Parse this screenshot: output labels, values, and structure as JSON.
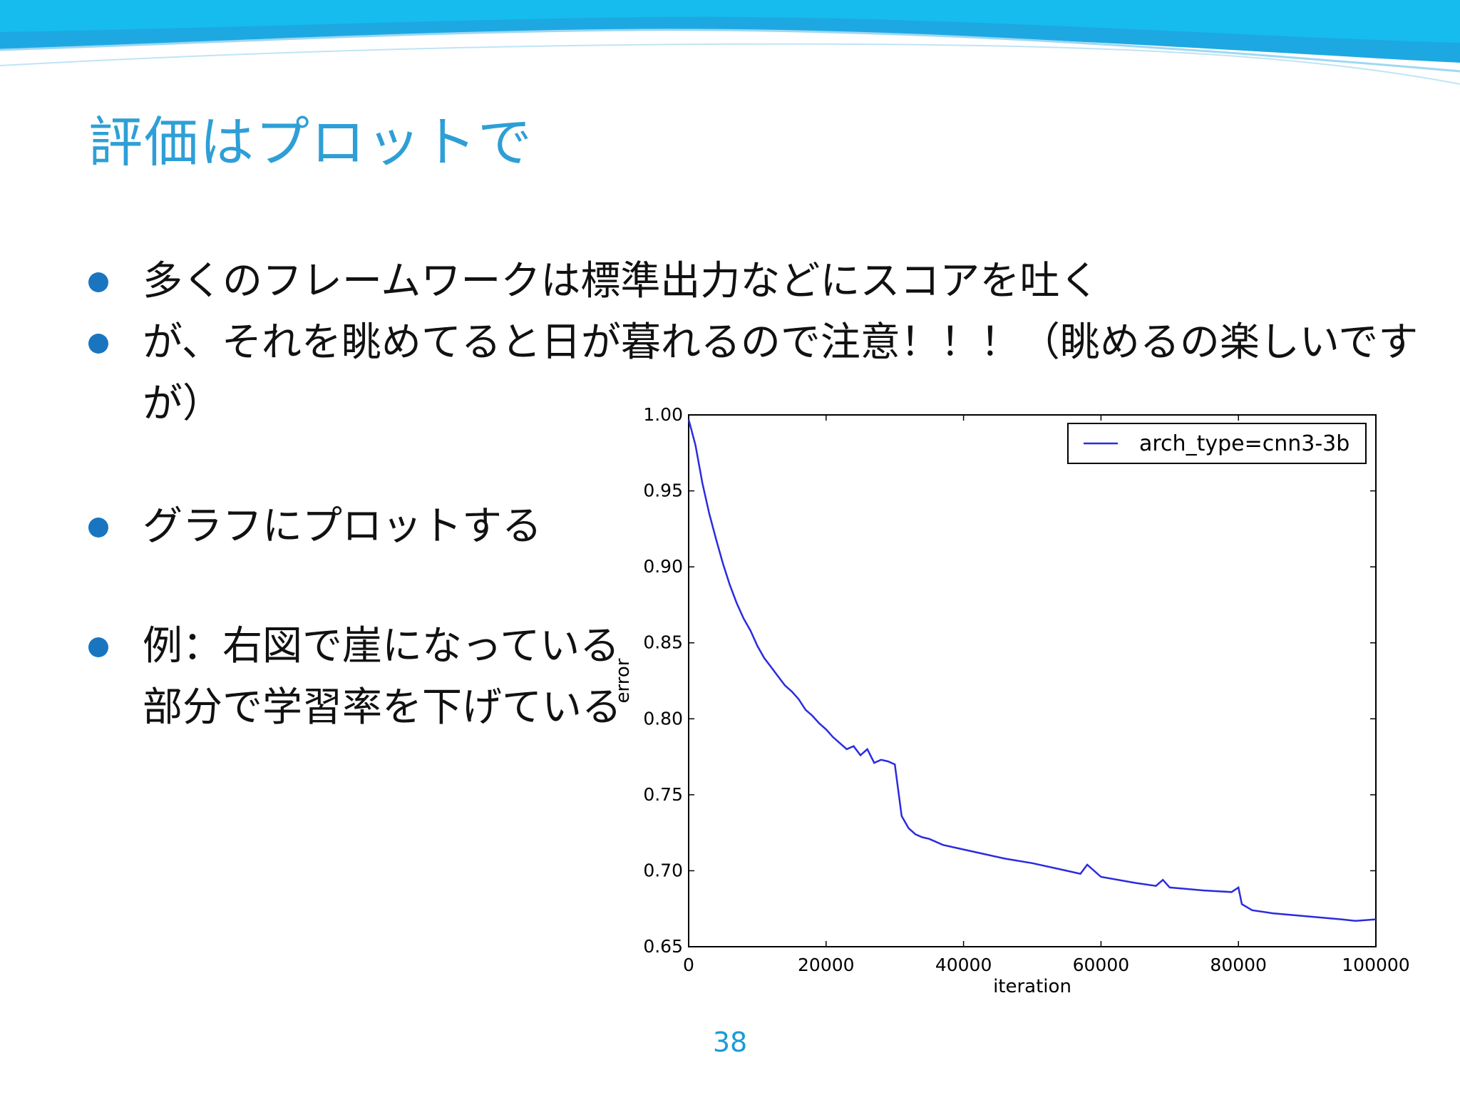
{
  "slide": {
    "title": "評価はプロットで",
    "page_number": "38",
    "colors": {
      "title": "#2e9fd6",
      "bullet": "#1a75c0",
      "banner": "#16a4e0",
      "line": "#2b2be0"
    }
  },
  "bullets": [
    {
      "text": "多くのフレームワークは標準出力などにスコアを吐く"
    },
    {
      "text": "が、それを眺めてると日が暮れるので注意！！！（眺めるの楽しいですが）"
    },
    {
      "text": "グラフにプロットする"
    },
    {
      "text": "例：右図で崖になっている部分で学習率を下げている"
    }
  ],
  "chart_data": {
    "type": "line",
    "title": "",
    "xlabel": "iteration",
    "ylabel": "error",
    "xlim": [
      0,
      100000
    ],
    "ylim": [
      0.65,
      1.0
    ],
    "xticks": [
      "0",
      "20000",
      "40000",
      "60000",
      "80000",
      "100000"
    ],
    "yticks": [
      "0.65",
      "0.70",
      "0.75",
      "0.80",
      "0.85",
      "0.90",
      "0.95",
      "1.00"
    ],
    "legend_position": "top-right",
    "grid": false,
    "series": [
      {
        "name": "arch_type=cnn3-3b",
        "color": "#2b2be0",
        "x": [
          0,
          1000,
          2000,
          3000,
          4000,
          5000,
          6000,
          7000,
          8000,
          9000,
          10000,
          11000,
          12000,
          13000,
          14000,
          15000,
          16000,
          17000,
          18000,
          19000,
          20000,
          21000,
          22000,
          23000,
          24000,
          25000,
          26000,
          27000,
          28000,
          29000,
          30000,
          31000,
          32000,
          33000,
          34000,
          35000,
          37000,
          40000,
          43000,
          46000,
          50000,
          55000,
          57000,
          58000,
          60000,
          65000,
          68000,
          69000,
          70000,
          75000,
          79000,
          80000,
          80500,
          82000,
          85000,
          90000,
          95000,
          97000,
          100000
        ],
        "y": [
          0.997,
          0.98,
          0.955,
          0.935,
          0.918,
          0.902,
          0.888,
          0.876,
          0.866,
          0.858,
          0.848,
          0.84,
          0.834,
          0.828,
          0.822,
          0.818,
          0.813,
          0.806,
          0.802,
          0.797,
          0.793,
          0.788,
          0.784,
          0.78,
          0.782,
          0.776,
          0.78,
          0.771,
          0.773,
          0.772,
          0.77,
          0.736,
          0.728,
          0.724,
          0.722,
          0.721,
          0.717,
          0.714,
          0.711,
          0.708,
          0.705,
          0.7,
          0.698,
          0.704,
          0.696,
          0.692,
          0.69,
          0.694,
          0.689,
          0.687,
          0.686,
          0.689,
          0.678,
          0.674,
          0.672,
          0.67,
          0.668,
          0.667,
          0.668
        ]
      }
    ]
  }
}
